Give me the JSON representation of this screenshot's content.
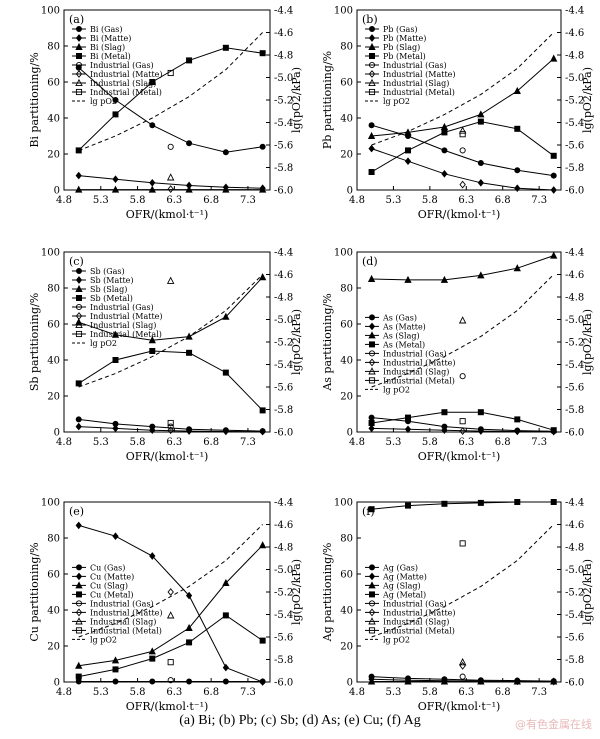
{
  "caption": "(a) Bi; (b) Pb; (c) Sb; (d) As; (e) Cu; (f) Ag",
  "watermark": "@有色金属在线",
  "colors": {
    "axis": "#000000",
    "line": "#000000",
    "background": "#ffffff"
  },
  "chart_data": [
    {
      "type": "line",
      "panel": "(a)",
      "xlabel": "OFR/(kmol·t⁻¹)",
      "ylabel": "Bi partitioning/%",
      "y2label": "lg(pO2/kPa)",
      "xlim": [
        4.8,
        7.6
      ],
      "ylim": [
        0,
        100
      ],
      "y2lim": [
        -6.0,
        -4.4
      ],
      "xticks": [
        "4.8",
        "5.3",
        "5.8",
        "6.3",
        "6.8",
        "7.3"
      ],
      "yticks": [
        "0",
        "20",
        "40",
        "60",
        "80",
        "100"
      ],
      "y2ticks": [
        "-6.0",
        "-5.8",
        "-5.6",
        "-5.4",
        "-5.2",
        "-5.0",
        "-4.8",
        "-4.6",
        "-4.4"
      ],
      "legend_position": "top-left",
      "legend": [
        "Bi (Gas)",
        "Bi (Matte)",
        "Bi (Slag)",
        "Bi (Metal)",
        "lg pO2"
      ],
      "legend2": [
        "Industrial (Gas)",
        "Industrial (Matte)",
        "Industrial (Slag)",
        "Industrial (Metal)"
      ],
      "x": [
        5.0,
        5.5,
        6.0,
        6.5,
        7.0,
        7.5
      ],
      "series": [
        {
          "name": "Bi (Gas)",
          "marker": "circle",
          "values": [
            68,
            50,
            36,
            26,
            21,
            24
          ]
        },
        {
          "name": "Bi (Matte)",
          "marker": "diamond",
          "values": [
            8,
            6,
            4,
            2.5,
            1.5,
            1
          ]
        },
        {
          "name": "Bi (Slag)",
          "marker": "triangle",
          "values": [
            0.2,
            0.2,
            0.2,
            0.2,
            0.2,
            0.2
          ]
        },
        {
          "name": "Bi (Metal)",
          "marker": "square",
          "values": [
            22,
            42,
            60,
            72,
            79,
            76
          ]
        },
        {
          "name": "lg pO2",
          "axis": "right",
          "dashed": true,
          "values": [
            -5.65,
            -5.52,
            -5.36,
            -5.17,
            -4.93,
            -4.6
          ]
        }
      ],
      "industrial": [
        {
          "name": "Industrial (Gas)",
          "marker": "open-circle",
          "x": 6.25,
          "y": 24
        },
        {
          "name": "Industrial (Matte)",
          "marker": "open-diamond",
          "x": 6.25,
          "y": 0.5
        },
        {
          "name": "Industrial (Slag)",
          "marker": "open-triangle",
          "x": 6.25,
          "y": 7
        },
        {
          "name": "Industrial (Metal)",
          "marker": "open-square",
          "x": 6.25,
          "y": 65
        }
      ]
    },
    {
      "type": "line",
      "panel": "(b)",
      "xlabel": "OFR/(kmol·t⁻¹)",
      "ylabel": "Pb partitioning/%",
      "y2label": "lg(pO2/kPa)",
      "xlim": [
        4.8,
        7.6
      ],
      "ylim": [
        0,
        100
      ],
      "y2lim": [
        -6.0,
        -4.4
      ],
      "xticks": [
        "4.8",
        "5.3",
        "5.8",
        "6.3",
        "6.8",
        "7.3"
      ],
      "yticks": [
        "0",
        "20",
        "40",
        "60",
        "80",
        "100"
      ],
      "y2ticks": [
        "-6.0",
        "-5.8",
        "-5.6",
        "-5.4",
        "-5.2",
        "-5.0",
        "-4.8",
        "-4.6",
        "-4.4"
      ],
      "legend_position": "top-left",
      "legend": [
        "Pb (Gas)",
        "Pb (Matte)",
        "Pb (Slag)",
        "Pb (Metal)",
        "Industrial (Gas)",
        "Industrial (Matte)",
        "Industrial (Slag)",
        "Industrial (Metal)",
        "lg pO2"
      ],
      "x": [
        5.0,
        5.5,
        6.0,
        6.5,
        7.0,
        7.5
      ],
      "series": [
        {
          "name": "Pb (Gas)",
          "marker": "circle",
          "values": [
            36,
            30,
            22,
            15,
            11,
            8
          ]
        },
        {
          "name": "Pb (Matte)",
          "marker": "diamond",
          "values": [
            23,
            16,
            9,
            4,
            1,
            0
          ]
        },
        {
          "name": "Pb (Slag)",
          "marker": "triangle",
          "values": [
            30,
            32,
            35,
            42,
            55,
            73
          ]
        },
        {
          "name": "Pb (Metal)",
          "marker": "square",
          "values": [
            10,
            22,
            32,
            38,
            34,
            19
          ]
        },
        {
          "name": "lg pO2",
          "axis": "right",
          "dashed": true,
          "values": [
            -5.6,
            -5.48,
            -5.33,
            -5.15,
            -4.92,
            -4.6
          ]
        }
      ],
      "industrial": [
        {
          "name": "Industrial (Gas)",
          "marker": "open-circle",
          "x": 6.25,
          "y": 22
        },
        {
          "name": "Industrial (Matte)",
          "marker": "open-diamond",
          "x": 6.25,
          "y": 3
        },
        {
          "name": "Industrial (Slag)",
          "marker": "open-triangle",
          "x": 6.25,
          "y": 33
        },
        {
          "name": "Industrial (Metal)",
          "marker": "open-square",
          "x": 6.25,
          "y": 31
        }
      ]
    },
    {
      "type": "line",
      "panel": "(c)",
      "xlabel": "OFR/(kmol·t⁻¹)",
      "ylabel": "Sb partitioning/%",
      "y2label": "lg(pO2/kPa)",
      "xlim": [
        4.8,
        7.6
      ],
      "ylim": [
        0,
        100
      ],
      "y2lim": [
        -6.0,
        -4.4
      ],
      "xticks": [
        "4.8",
        "5.3",
        "5.8",
        "6.3",
        "6.8",
        "7.3"
      ],
      "yticks": [
        "0",
        "20",
        "40",
        "60",
        "80",
        "100"
      ],
      "y2ticks": [
        "-6.0",
        "-5.8",
        "-5.6",
        "-5.4",
        "-5.2",
        "-5.0",
        "-4.8",
        "-4.6",
        "-4.4"
      ],
      "legend_position": "top-left",
      "legend": [
        "Sb (Gas)",
        "Sb (Matte)",
        "Sb (Slag)",
        "Sb (Metal)",
        "Industrial (Gas)",
        "Industrial (Matte)",
        "Industrial (Slag)",
        "Industrial (Metal)",
        "lg pO2"
      ],
      "x": [
        5.0,
        5.5,
        6.0,
        6.5,
        7.0,
        7.5
      ],
      "series": [
        {
          "name": "Sb (Gas)",
          "marker": "circle",
          "values": [
            7,
            4.5,
            3,
            1.5,
            1,
            0.5
          ]
        },
        {
          "name": "Sb (Matte)",
          "marker": "diamond",
          "values": [
            3,
            2,
            1,
            0.5,
            0.3,
            0.2
          ]
        },
        {
          "name": "Sb (Slag)",
          "marker": "triangle",
          "values": [
            61,
            54,
            51,
            53,
            64,
            86
          ]
        },
        {
          "name": "Sb (Metal)",
          "marker": "square",
          "values": [
            27,
            40,
            45,
            44,
            33,
            12
          ]
        },
        {
          "name": "lg pO2",
          "axis": "right",
          "dashed": true,
          "values": [
            -5.6,
            -5.48,
            -5.33,
            -5.15,
            -4.92,
            -4.6
          ]
        }
      ],
      "industrial": [
        {
          "name": "Industrial (Gas)",
          "marker": "open-circle",
          "x": 6.25,
          "y": 3
        },
        {
          "name": "Industrial (Matte)",
          "marker": "open-diamond",
          "x": 6.25,
          "y": 1
        },
        {
          "name": "Industrial (Slag)",
          "marker": "open-triangle",
          "x": 6.25,
          "y": 84
        },
        {
          "name": "Industrial (Metal)",
          "marker": "open-square",
          "x": 6.25,
          "y": 5
        }
      ]
    },
    {
      "type": "line",
      "panel": "(d)",
      "xlabel": "OFR/(kmol·t⁻¹)",
      "ylabel": "As partitioning/%",
      "y2label": "lg(pO2/kPa)",
      "xlim": [
        4.8,
        7.6
      ],
      "ylim": [
        0,
        100
      ],
      "y2lim": [
        -6.0,
        -4.4
      ],
      "xticks": [
        "4.8",
        "5.3",
        "5.8",
        "6.3",
        "6.8",
        "7.3"
      ],
      "yticks": [
        "0",
        "20",
        "40",
        "60",
        "80",
        "100"
      ],
      "y2ticks": [
        "-6.0",
        "-5.8",
        "-5.6",
        "-5.4",
        "-5.2",
        "-5.0",
        "-4.8",
        "-4.6",
        "-4.4"
      ],
      "legend_position": "center-left",
      "legend": [
        "As (Gas)",
        "As (Matte)",
        "As (Slag)",
        "As (Metal)",
        "Industrial (Gas)",
        "Industrial (Matte)",
        "Industrial (Slag)",
        "Industrial (Metal)",
        "lg pO2"
      ],
      "x": [
        5.0,
        5.5,
        6.0,
        6.5,
        7.0,
        7.5
      ],
      "series": [
        {
          "name": "As (Gas)",
          "marker": "circle",
          "values": [
            8,
            6,
            3,
            1.5,
            0.8,
            0.4
          ]
        },
        {
          "name": "As (Matte)",
          "marker": "diamond",
          "values": [
            2,
            1.5,
            1,
            0.5,
            0.3,
            0.2
          ]
        },
        {
          "name": "As (Slag)",
          "marker": "triangle",
          "values": [
            85,
            84.5,
            84.5,
            87,
            91,
            98
          ]
        },
        {
          "name": "As (Metal)",
          "marker": "square",
          "values": [
            5,
            8,
            11,
            11,
            7,
            1
          ]
        },
        {
          "name": "lg pO2",
          "axis": "right",
          "dashed": true,
          "values": [
            -5.6,
            -5.48,
            -5.33,
            -5.15,
            -4.92,
            -4.6
          ]
        }
      ],
      "industrial": [
        {
          "name": "Industrial (Gas)",
          "marker": "open-circle",
          "x": 6.25,
          "y": 31
        },
        {
          "name": "Industrial (Matte)",
          "marker": "open-diamond",
          "x": 6.25,
          "y": 0.5
        },
        {
          "name": "Industrial (Slag)",
          "marker": "open-triangle",
          "x": 6.25,
          "y": 62
        },
        {
          "name": "Industrial (Metal)",
          "marker": "open-square",
          "x": 6.25,
          "y": 6
        }
      ]
    },
    {
      "type": "line",
      "panel": "(e)",
      "xlabel": "OFR/(kmol·t⁻¹)",
      "ylabel": "Cu partitioning/%",
      "y2label": "lg(pO2/kPa)",
      "xlim": [
        4.8,
        7.6
      ],
      "ylim": [
        0,
        100
      ],
      "y2lim": [
        -6.0,
        -4.4
      ],
      "xticks": [
        "4.8",
        "5.3",
        "5.8",
        "6.3",
        "6.8",
        "7.3"
      ],
      "yticks": [
        "0",
        "20",
        "40",
        "60",
        "80",
        "100"
      ],
      "y2ticks": [
        "-6.0",
        "-5.8",
        "-5.6",
        "-5.4",
        "-5.2",
        "-5.0",
        "-4.8",
        "-4.6",
        "-4.4"
      ],
      "legend_position": "center-left",
      "legend": [
        "Cu (Gas)",
        "Cu (Matte)",
        "Cu (Slag)",
        "Cu (Metal)",
        "Industrial (Gas)",
        "Industrial (Matte)",
        "Industrial (Slag)",
        "Industrial (Metal)",
        "lg pO2"
      ],
      "x": [
        5.0,
        5.5,
        6.0,
        6.5,
        7.0,
        7.5
      ],
      "series": [
        {
          "name": "Cu (Gas)",
          "marker": "circle",
          "values": [
            0.3,
            0.3,
            0.3,
            0.3,
            0.3,
            0.3
          ]
        },
        {
          "name": "Cu (Matte)",
          "marker": "diamond",
          "values": [
            87,
            81,
            70,
            48,
            8,
            0
          ]
        },
        {
          "name": "Cu (Slag)",
          "marker": "triangle",
          "values": [
            9,
            12,
            17,
            30,
            55,
            76
          ]
        },
        {
          "name": "Cu (Metal)",
          "marker": "square",
          "values": [
            3,
            7,
            13,
            22,
            37,
            23
          ]
        },
        {
          "name": "lg pO2",
          "axis": "right",
          "dashed": true,
          "values": [
            -5.6,
            -5.48,
            -5.33,
            -5.15,
            -4.92,
            -4.6
          ]
        }
      ],
      "industrial": [
        {
          "name": "Industrial (Gas)",
          "marker": "open-circle",
          "x": 6.25,
          "y": 1
        },
        {
          "name": "Industrial (Matte)",
          "marker": "open-diamond",
          "x": 6.25,
          "y": 50
        },
        {
          "name": "Industrial (Slag)",
          "marker": "open-triangle",
          "x": 6.25,
          "y": 37
        },
        {
          "name": "Industrial (Metal)",
          "marker": "open-square",
          "x": 6.25,
          "y": 11
        }
      ]
    },
    {
      "type": "line",
      "panel": "(f)",
      "xlabel": "OFR/(kmol·t⁻¹)",
      "ylabel": "Ag partitioning/%",
      "y2label": "lg(pO2/kPa)",
      "xlim": [
        4.8,
        7.6
      ],
      "ylim": [
        0,
        100
      ],
      "y2lim": [
        -6.0,
        -4.4
      ],
      "xticks": [
        "4.8",
        "5.3",
        "5.8",
        "6.3",
        "6.8",
        "7.3"
      ],
      "yticks": [
        "0",
        "20",
        "40",
        "60",
        "80",
        "100"
      ],
      "y2ticks": [
        "-6.0",
        "-5.8",
        "-5.6",
        "-5.4",
        "-5.2",
        "-5.0",
        "-4.8",
        "-4.6",
        "-4.4"
      ],
      "legend_position": "center-left",
      "legend": [
        "Ag (Gas)",
        "Ag (Matte)",
        "Ag (Slag)",
        "Ag (Metal)",
        "Industrial (Gas)",
        "Industrial (Matte)",
        "Industrial (Slag)",
        "Industrial (Metal)",
        "lg pO2"
      ],
      "x": [
        5.0,
        5.5,
        6.0,
        6.5,
        7.0,
        7.5
      ],
      "series": [
        {
          "name": "Ag (Gas)",
          "marker": "circle",
          "values": [
            3,
            2,
            1.5,
            1,
            0.8,
            0.5
          ]
        },
        {
          "name": "Ag (Matte)",
          "marker": "diamond",
          "values": [
            1.5,
            1,
            0.7,
            0.5,
            0.3,
            0.2
          ]
        },
        {
          "name": "Ag (Slag)",
          "marker": "triangle",
          "values": [
            0.3,
            0.3,
            0.3,
            0.3,
            0.3,
            0.3
          ]
        },
        {
          "name": "Ag (Metal)",
          "marker": "square",
          "values": [
            96,
            98,
            99,
            99.5,
            100,
            100
          ]
        },
        {
          "name": "lg pO2",
          "axis": "right",
          "dashed": true,
          "values": [
            -5.6,
            -5.48,
            -5.33,
            -5.15,
            -4.92,
            -4.6
          ]
        }
      ],
      "industrial": [
        {
          "name": "Industrial (Gas)",
          "marker": "open-circle",
          "x": 6.25,
          "y": 3
        },
        {
          "name": "Industrial (Matte)",
          "marker": "open-diamond",
          "x": 6.25,
          "y": 9
        },
        {
          "name": "Industrial (Slag)",
          "marker": "open-triangle",
          "x": 6.25,
          "y": 11
        },
        {
          "name": "Industrial (Metal)",
          "marker": "open-square",
          "x": 6.25,
          "y": 77
        }
      ]
    }
  ]
}
